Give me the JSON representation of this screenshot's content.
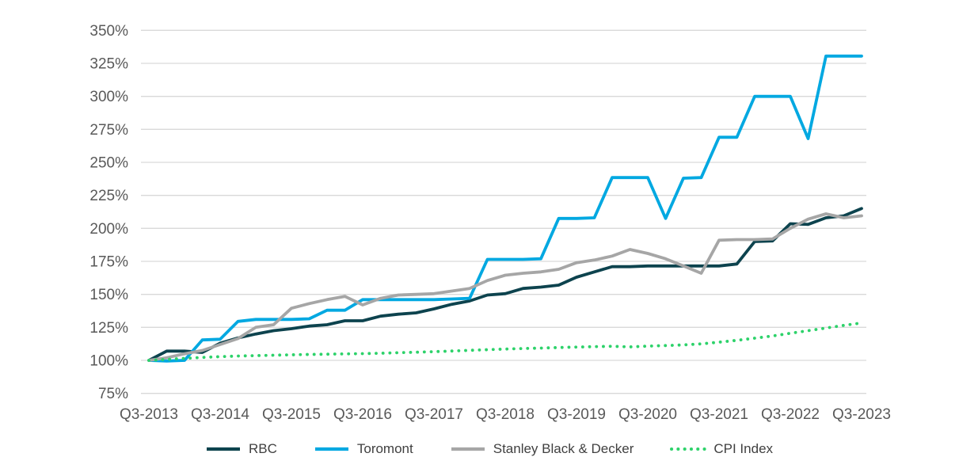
{
  "chart_data": {
    "type": "line",
    "title": "",
    "x_tick_labels": [
      "Q3-2013",
      "Q3-2014",
      "Q3-2015",
      "Q3-2016",
      "Q3-2017",
      "Q3-2018",
      "Q3-2019",
      "Q3-2020",
      "Q3-2021",
      "Q3-2022",
      "Q3-2023"
    ],
    "y_tick_labels": [
      "350%",
      "325%",
      "300%",
      "275%",
      "250%",
      "225%",
      "200%",
      "175%",
      "150%",
      "125%",
      "100%",
      "75%"
    ],
    "ylim": [
      75,
      350
    ],
    "ytick_step": 25,
    "grid": "horizontal-only",
    "legend_position": "bottom",
    "points_per_series": 41,
    "x_unit": "quarter",
    "series": [
      {
        "name": "RBC",
        "color": "#0D434E",
        "style": "solid",
        "values": [
          100,
          107,
          107,
          106,
          113,
          117,
          120,
          122.5,
          124,
          126,
          127,
          130,
          130,
          133.5,
          135,
          136,
          139,
          142.5,
          145,
          149.5,
          150.5,
          154.5,
          155.5,
          157,
          163,
          167,
          171,
          171,
          171.5,
          171.5,
          171.5,
          171.5,
          171.5,
          173,
          190,
          190.5,
          203.5,
          203,
          208,
          209.5,
          215
        ]
      },
      {
        "name": "Toromont",
        "color": "#00A8E1",
        "style": "solid",
        "values": [
          100,
          99.5,
          100,
          115.5,
          116,
          129.5,
          131,
          131,
          131,
          131.5,
          138,
          138,
          146,
          146,
          146,
          146,
          146,
          146.5,
          147,
          176.5,
          176.5,
          176.5,
          177,
          207.5,
          207.5,
          208,
          238.5,
          238.5,
          238.5,
          207.5,
          238,
          238.5,
          269,
          269,
          300,
          300,
          300,
          268,
          330.5,
          330.5,
          330.5
        ]
      },
      {
        "name": "Stanley Black & Decker",
        "color": "#A6A6A6",
        "style": "solid",
        "values": [
          100,
          102,
          105,
          107.5,
          112,
          116.5,
          125,
          127,
          139.5,
          143,
          146,
          148.5,
          142,
          147,
          149.5,
          150,
          150.5,
          152.5,
          154.5,
          160.5,
          164.5,
          166,
          167,
          169,
          174,
          176,
          179,
          184,
          181,
          177,
          171.5,
          166,
          191,
          191.5,
          191.5,
          192,
          200,
          207,
          211,
          208,
          209.5
        ]
      },
      {
        "name": "CPI Index",
        "color": "#2DD26A",
        "style": "dotted",
        "values": [
          100,
          100.8,
          101.5,
          102.2,
          102.8,
          103.3,
          103.6,
          103.9,
          104.2,
          104.5,
          104.7,
          104.9,
          105.1,
          105.4,
          105.8,
          106.2,
          106.6,
          107.1,
          107.6,
          108.1,
          108.6,
          109,
          109.3,
          109.7,
          110.1,
          110.4,
          110.7,
          110.2,
          110.8,
          111.2,
          111.7,
          112.5,
          113.8,
          115.2,
          116.8,
          118.5,
          120.5,
          122.5,
          124.5,
          126.5,
          128.3
        ]
      }
    ]
  },
  "colors": {
    "background": "#FFFFFF",
    "gridline": "#D9D9D9",
    "axis_text": "#595959",
    "legend_text": "#404040"
  }
}
